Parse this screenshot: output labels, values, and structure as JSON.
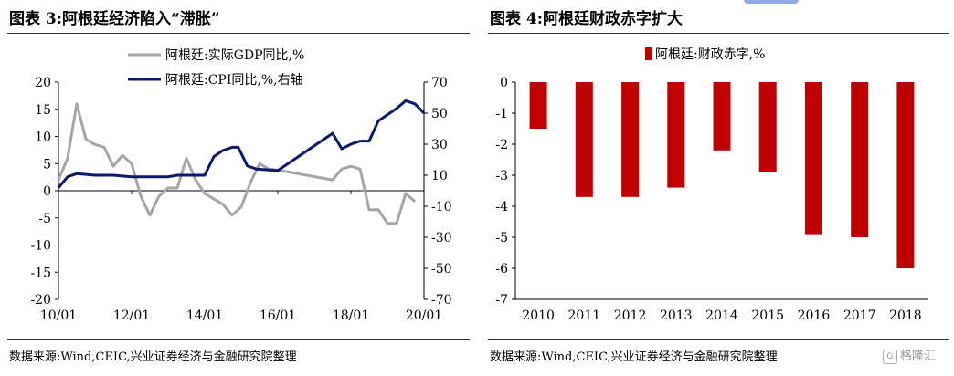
{
  "left": {
    "title": "图表 3:阿根廷经济陷入“滞胀”",
    "source": "数据来源:Wind,CEIC,兴业证券经济与金融研究院整理",
    "chart_data": {
      "type": "line",
      "x_ticks": [
        "10/01",
        "12/01",
        "14/01",
        "16/01",
        "18/01",
        "20/01"
      ],
      "y_left_ticks": [
        "20",
        "15",
        "10",
        "5",
        "0",
        "-5",
        "-10",
        "-15",
        "-20"
      ],
      "y_left_range": [
        -20,
        20
      ],
      "y_right_ticks": [
        "70",
        "50",
        "30",
        "10",
        "-10",
        "-30",
        "-50",
        "-70"
      ],
      "y_right_range": [
        -70,
        70
      ],
      "colors": {
        "gdp": "#a6a6a6",
        "cpi": "#0d1a6b"
      },
      "series": [
        {
          "name": "阿根廷:实际GDP同比,%",
          "axis": "left",
          "x": [
            "2010-01",
            "2010-04",
            "2010-07",
            "2010-10",
            "2011-01",
            "2011-04",
            "2011-07",
            "2011-10",
            "2012-01",
            "2012-04",
            "2012-07",
            "2012-10",
            "2013-01",
            "2013-04",
            "2013-07",
            "2013-10",
            "2014-01",
            "2014-04",
            "2014-07",
            "2014-10",
            "2015-01",
            "2015-04",
            "2015-07",
            "2015-10",
            "2016-01",
            "2016-04",
            "2017-07",
            "2017-10",
            "2018-01",
            "2018-04",
            "2018-07",
            "2018-10",
            "2019-01",
            "2019-04",
            "2019-07",
            "2019-10"
          ],
          "values": [
            2,
            6,
            16,
            9.5,
            8.5,
            8,
            4.5,
            6.5,
            5,
            -1,
            -4.5,
            -1,
            0.5,
            0.5,
            6,
            2,
            -0.5,
            -1.5,
            -2.5,
            -4.5,
            -3,
            1.5,
            5,
            4,
            3.8,
            3.5,
            2,
            4,
            4.5,
            4,
            -3.5,
            -3.5,
            -6,
            -6,
            -0.5,
            -2
          ]
        },
        {
          "name": "阿根廷:CPI同比,%,右轴",
          "axis": "right",
          "x": [
            "2010-01",
            "2010-04",
            "2010-07",
            "2011-01",
            "2011-07",
            "2012-01",
            "2012-07",
            "2013-01",
            "2013-04",
            "2013-07",
            "2013-10",
            "2014-01",
            "2014-04",
            "2014-07",
            "2014-10",
            "2014-12",
            "2015-03",
            "2015-06",
            "2016-01",
            "2017-07",
            "2017-10",
            "2018-01",
            "2018-04",
            "2018-07",
            "2018-10",
            "2019-01",
            "2019-04",
            "2019-07",
            "2019-10",
            "2019-12",
            "2020-01"
          ],
          "values": [
            2,
            9,
            11,
            10,
            10,
            9,
            9,
            9,
            10,
            10,
            10,
            10,
            22,
            26,
            28,
            28,
            16,
            14,
            13,
            37,
            27,
            30,
            32,
            32,
            45,
            49,
            53,
            58,
            56,
            52,
            50
          ]
        }
      ]
    }
  },
  "right": {
    "title": "图表 4:阿根廷财政赤字扩大",
    "source": "数据来源:Wind,CEIC,兴业证券经济与金融研究院整理",
    "chart_data": {
      "type": "bar",
      "categories": [
        "2010",
        "2011",
        "2012",
        "2013",
        "2014",
        "2015",
        "2016",
        "2017",
        "2018"
      ],
      "series": [
        {
          "name": "阿根廷:财政赤字,%",
          "values": [
            -1.5,
            -3.7,
            -3.7,
            -3.4,
            -2.2,
            -2.9,
            -4.9,
            -5.0,
            -6.0
          ]
        }
      ],
      "y_ticks": [
        "0",
        "-1",
        "-2",
        "-3",
        "-4",
        "-5",
        "-6",
        "-7"
      ],
      "ylim": [
        -7,
        0
      ],
      "color": "#c00000"
    }
  },
  "watermark": "格隆汇",
  "watermark_icon": "G"
}
